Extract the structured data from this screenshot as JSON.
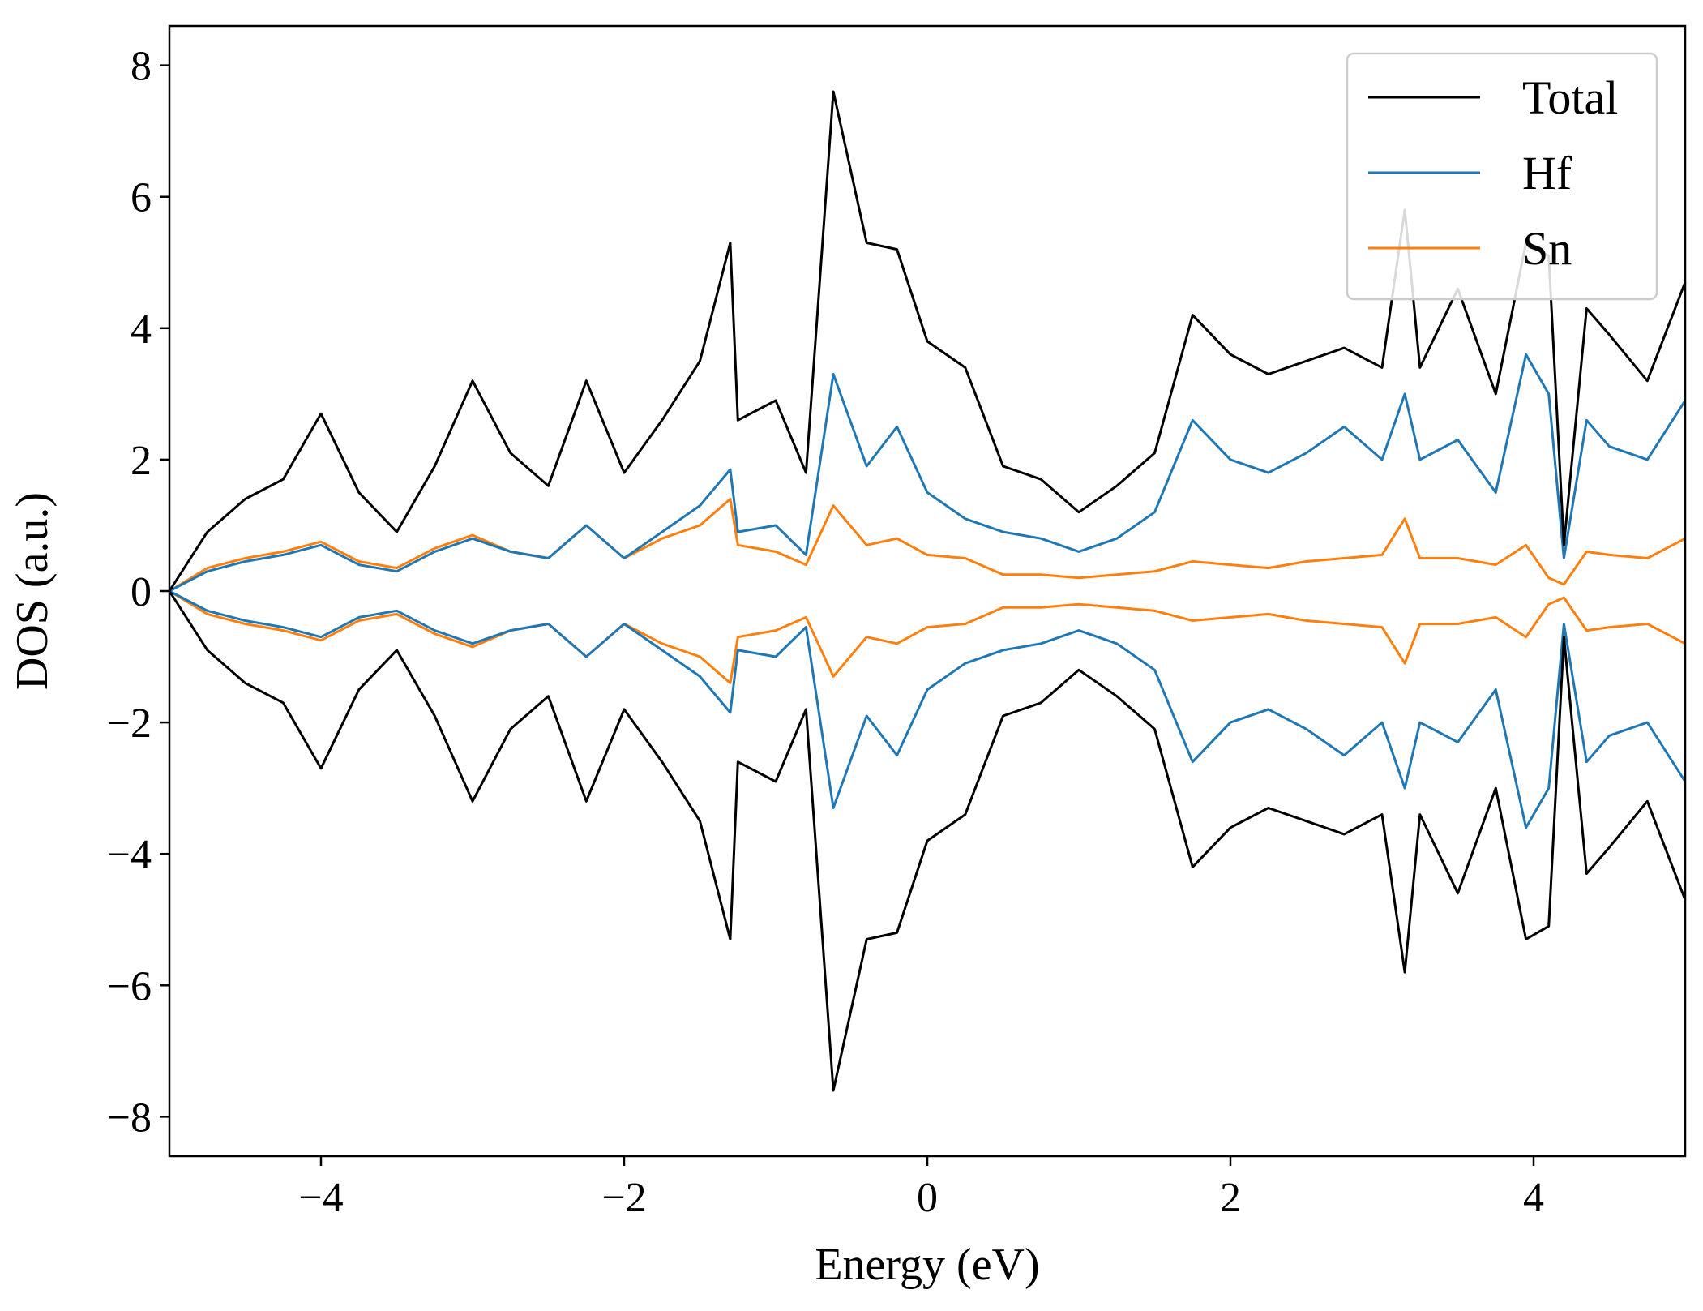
{
  "chart_data": {
    "type": "line",
    "title": "",
    "xlabel": "Energy (eV)",
    "ylabel": "DOS (a.u.)",
    "xlim": [
      -5,
      5
    ],
    "ylim": [
      -8.6,
      8.6
    ],
    "x_ticks": [
      -4,
      -2,
      0,
      2,
      4
    ],
    "x_tick_labels": [
      "−4",
      "−2",
      "0",
      "2",
      "4"
    ],
    "y_ticks": [
      -8,
      -6,
      -4,
      -2,
      0,
      2,
      4,
      6,
      8
    ],
    "y_tick_labels": [
      "−8",
      "−6",
      "−4",
      "−2",
      "0",
      "2",
      "4",
      "6",
      "8"
    ],
    "grid": false,
    "legend_position": "top-right",
    "spin_symmetric": true,
    "note_spin": "spin-down channel is the negative mirror of the spin-up values",
    "x": [
      -5.0,
      -4.75,
      -4.5,
      -4.25,
      -4.0,
      -3.75,
      -3.5,
      -3.25,
      -3.0,
      -2.75,
      -2.5,
      -2.25,
      -2.0,
      -1.75,
      -1.5,
      -1.3,
      -1.25,
      -1.0,
      -0.8,
      -0.62,
      -0.4,
      -0.2,
      0.0,
      0.25,
      0.5,
      0.75,
      1.0,
      1.25,
      1.5,
      1.75,
      2.0,
      2.25,
      2.5,
      2.75,
      3.0,
      3.15,
      3.25,
      3.5,
      3.75,
      3.95,
      4.1,
      4.2,
      4.35,
      4.5,
      4.75,
      5.0
    ],
    "series": [
      {
        "name": "Total",
        "color": "#000000",
        "values": [
          0.0,
          0.9,
          1.4,
          1.7,
          2.7,
          1.5,
          0.9,
          1.9,
          3.2,
          2.1,
          1.6,
          3.2,
          1.8,
          2.6,
          3.5,
          5.3,
          2.6,
          2.9,
          1.8,
          7.6,
          5.3,
          5.2,
          3.8,
          3.4,
          1.9,
          1.7,
          1.2,
          1.6,
          2.1,
          4.2,
          3.6,
          3.3,
          3.5,
          3.7,
          3.4,
          5.8,
          3.4,
          4.6,
          3.0,
          5.3,
          5.1,
          0.7,
          4.3,
          3.9,
          3.2,
          4.7
        ]
      },
      {
        "name": "Hf",
        "color": "#1f77b4",
        "values": [
          0.0,
          0.3,
          0.45,
          0.55,
          0.7,
          0.4,
          0.3,
          0.6,
          0.8,
          0.6,
          0.5,
          1.0,
          0.5,
          0.9,
          1.3,
          1.85,
          0.9,
          1.0,
          0.55,
          3.3,
          1.9,
          2.5,
          1.5,
          1.1,
          0.9,
          0.8,
          0.6,
          0.8,
          1.2,
          2.6,
          2.0,
          1.8,
          2.1,
          2.5,
          2.0,
          3.0,
          2.0,
          2.3,
          1.5,
          3.6,
          3.0,
          0.5,
          2.6,
          2.2,
          2.0,
          2.9
        ]
      },
      {
        "name": "Sn",
        "color": "#ff7f0e",
        "values": [
          0.0,
          0.35,
          0.5,
          0.6,
          0.75,
          0.45,
          0.35,
          0.65,
          0.85,
          0.6,
          0.5,
          1.0,
          0.5,
          0.8,
          1.0,
          1.4,
          0.7,
          0.6,
          0.4,
          1.3,
          0.7,
          0.8,
          0.55,
          0.5,
          0.25,
          0.25,
          0.2,
          0.25,
          0.3,
          0.45,
          0.4,
          0.35,
          0.45,
          0.5,
          0.55,
          1.1,
          0.5,
          0.5,
          0.4,
          0.7,
          0.2,
          0.1,
          0.6,
          0.55,
          0.5,
          0.8
        ]
      }
    ]
  }
}
